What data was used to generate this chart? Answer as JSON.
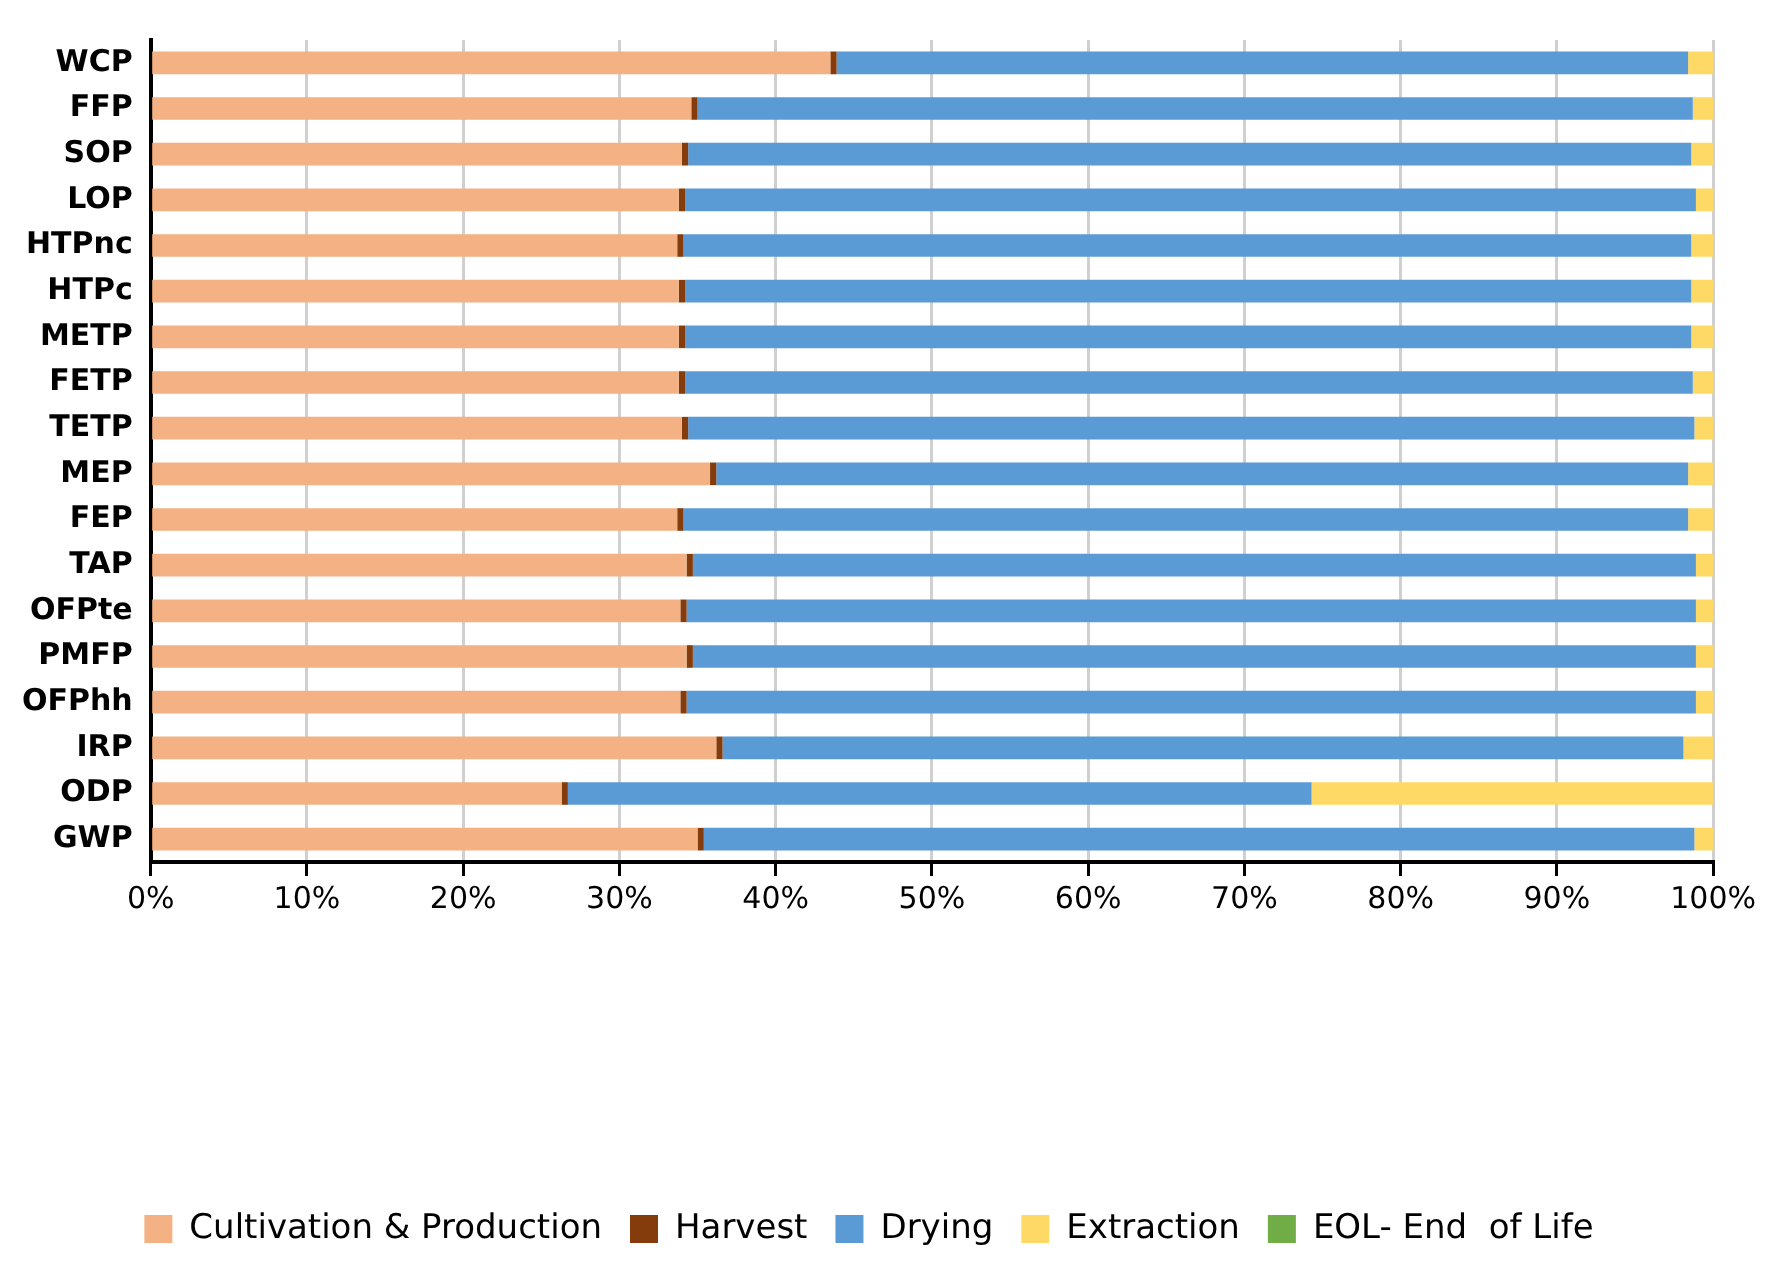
{
  "chart_data": {
    "type": "bar",
    "orientation": "horizontal",
    "stacked": true,
    "categories": [
      "WCP",
      "FFP",
      "SOP",
      "LOP",
      "HTPnc",
      "HTPc",
      "METP",
      "FETP",
      "TETP",
      "MEP",
      "FEP",
      "TAP",
      "OFPte",
      "PMFP",
      "OFPhh",
      "IRP",
      "ODP",
      "GWP"
    ],
    "series": [
      {
        "name": "Cultivation & Production",
        "color": "#f4b183",
        "values": [
          43.5,
          34.6,
          34.0,
          33.8,
          33.7,
          33.8,
          33.8,
          33.8,
          34.0,
          35.8,
          33.7,
          34.3,
          33.9,
          34.3,
          33.9,
          36.2,
          26.3,
          35.0
        ]
      },
      {
        "name": "Harvest",
        "color": "#843c0c",
        "values": [
          0.4,
          0.4,
          0.4,
          0.4,
          0.4,
          0.4,
          0.4,
          0.4,
          0.4,
          0.4,
          0.4,
          0.4,
          0.4,
          0.4,
          0.4,
          0.4,
          0.4,
          0.4
        ]
      },
      {
        "name": "Drying",
        "color": "#5b9bd5",
        "values": [
          54.5,
          63.7,
          64.2,
          64.7,
          64.5,
          64.4,
          64.4,
          64.5,
          64.4,
          62.2,
          64.3,
          64.2,
          64.6,
          64.2,
          64.6,
          61.5,
          47.6,
          63.4
        ]
      },
      {
        "name": "Extraction",
        "color": "#ffd966",
        "values": [
          1.6,
          1.3,
          1.4,
          1.1,
          1.4,
          1.4,
          1.4,
          1.3,
          1.2,
          1.6,
          1.6,
          1.1,
          1.1,
          1.1,
          1.1,
          1.9,
          25.7,
          1.2
        ]
      },
      {
        "name": "EOL- End  of Life",
        "color": "#70ad47",
        "values": [
          0,
          0,
          0,
          0,
          0,
          0,
          0,
          0,
          0,
          0,
          0,
          0,
          0,
          0,
          0,
          0,
          0,
          0
        ]
      }
    ],
    "xlim": [
      0,
      100
    ],
    "xticks": [
      {
        "value": 0,
        "label": "0%"
      },
      {
        "value": 10,
        "label": "10%"
      },
      {
        "value": 20,
        "label": "20%"
      },
      {
        "value": 30,
        "label": "30%"
      },
      {
        "value": 40,
        "label": "40%"
      },
      {
        "value": 50,
        "label": "50%"
      },
      {
        "value": 60,
        "label": "60%"
      },
      {
        "value": 70,
        "label": "70%"
      },
      {
        "value": 80,
        "label": "80%"
      },
      {
        "value": 90,
        "label": "90%"
      },
      {
        "value": 100,
        "label": "100%"
      }
    ],
    "grid": "x",
    "legend": "bottom"
  }
}
